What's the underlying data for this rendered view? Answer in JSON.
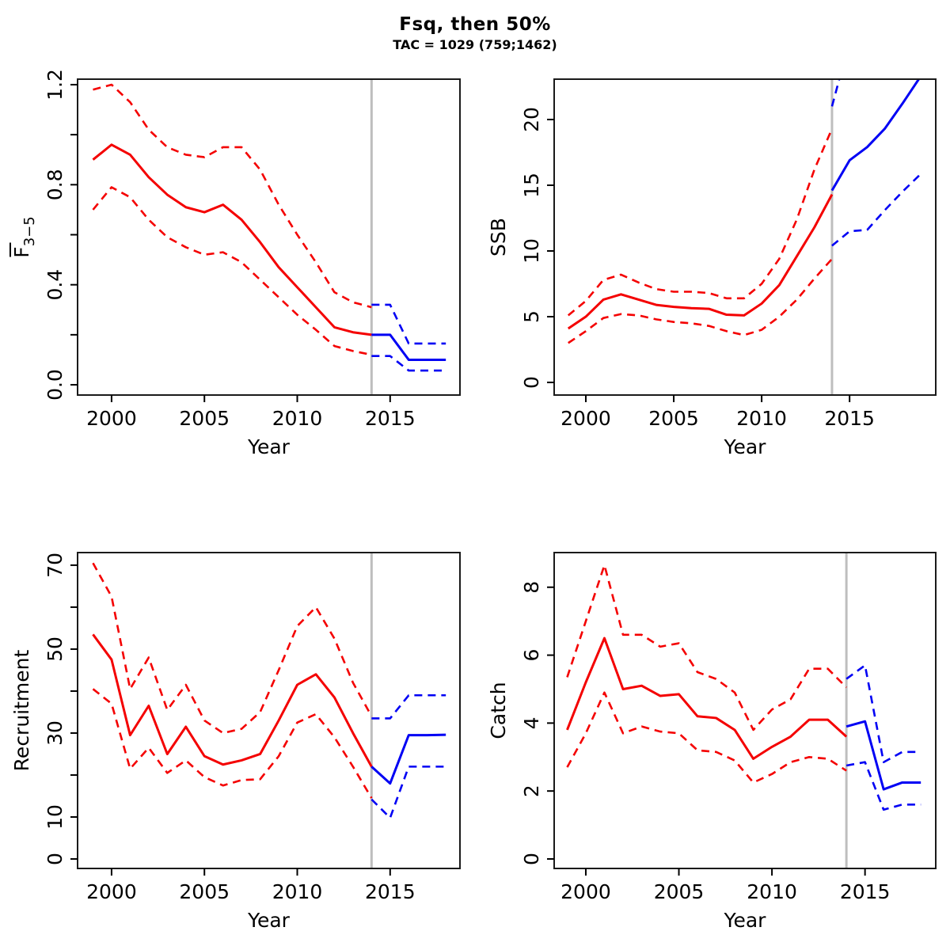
{
  "header": {
    "title": "Fsq, then 50%",
    "subtitle": "TAC = 1029 (759;1462)"
  },
  "colors": {
    "history": "#f40000",
    "projection": "#0000f4",
    "vline": "#bebebe",
    "axis": "#000000",
    "frame": "#1a1a1a"
  },
  "chart_data": [
    {
      "id": "fbar",
      "type": "line",
      "ylabel": {
        "text": "F",
        "sub": "3−5",
        "overbar": true
      },
      "xlabel": "Year",
      "xlim": [
        1998.17,
        2018.76
      ],
      "ylim": [
        -0.041,
        1.222
      ],
      "xticks": [
        2000,
        2005,
        2010,
        2015
      ],
      "xtick_labels": [
        "2000",
        "2005",
        "2010",
        "2015"
      ],
      "yticks": [
        0,
        0.2,
        0.4,
        0.6,
        0.8,
        1.0,
        1.2
      ],
      "ytick_labels": [
        "0.0",
        "",
        "0.4",
        "",
        "0.8",
        "",
        "1.2"
      ],
      "vline_x": 2014,
      "grid": false,
      "series": [
        {
          "name": "history-median",
          "segment": "history",
          "line": "solid",
          "x_start": 1999,
          "values": [
            0.9,
            0.96,
            0.92,
            0.83,
            0.76,
            0.71,
            0.69,
            0.72,
            0.66,
            0.57,
            0.47,
            0.39,
            0.31,
            0.23,
            0.21,
            0.2
          ]
        },
        {
          "name": "history-upper-ci",
          "segment": "history",
          "line": "dashed",
          "x_start": 1999,
          "values": [
            1.18,
            1.2,
            1.13,
            1.02,
            0.95,
            0.92,
            0.91,
            0.95,
            0.95,
            0.86,
            0.72,
            0.6,
            0.49,
            0.37,
            0.33,
            0.31
          ]
        },
        {
          "name": "history-lower-ci",
          "segment": "history",
          "line": "dashed",
          "x_start": 1999,
          "values": [
            0.7,
            0.79,
            0.75,
            0.66,
            0.59,
            0.55,
            0.52,
            0.53,
            0.49,
            0.42,
            0.35,
            0.28,
            0.22,
            0.155,
            0.135,
            0.12
          ]
        },
        {
          "name": "projection-median",
          "segment": "projection",
          "line": "solid",
          "x_start": 2014,
          "values": [
            0.2,
            0.2,
            0.1,
            0.1,
            0.1
          ]
        },
        {
          "name": "projection-upper-ci",
          "segment": "projection",
          "line": "dashed",
          "x_start": 2014,
          "values": [
            0.32,
            0.32,
            0.165,
            0.165,
            0.165
          ]
        },
        {
          "name": "projection-lower-ci",
          "segment": "projection",
          "line": "dashed",
          "x_start": 2014,
          "values": [
            0.115,
            0.115,
            0.057,
            0.057,
            0.057
          ]
        }
      ]
    },
    {
      "id": "ssb",
      "type": "line",
      "ylabel": "SSB",
      "xlabel": "Year",
      "xlim": [
        1998.2,
        2019.9
      ],
      "ylim": [
        -0.96,
        23.07
      ],
      "xticks": [
        2000,
        2005,
        2010,
        2015
      ],
      "xtick_labels": [
        "2000",
        "2005",
        "2010",
        "2015"
      ],
      "yticks": [
        0,
        5,
        10,
        15,
        20
      ],
      "ytick_labels": [
        "0",
        "5",
        "10",
        "15",
        "20"
      ],
      "vline_x": 2014,
      "grid": false,
      "series": [
        {
          "name": "history-median",
          "segment": "history",
          "line": "solid",
          "x_start": 1999,
          "values": [
            4.1,
            5.0,
            6.3,
            6.7,
            6.3,
            5.9,
            5.75,
            5.65,
            5.6,
            5.15,
            5.1,
            6.0,
            7.4,
            9.6,
            11.8,
            14.3
          ]
        },
        {
          "name": "history-upper-ci",
          "segment": "history",
          "line": "dashed",
          "x_start": 1999,
          "values": [
            5.1,
            6.2,
            7.8,
            8.2,
            7.6,
            7.1,
            6.9,
            6.9,
            6.8,
            6.4,
            6.4,
            7.5,
            9.4,
            12.4,
            16.2,
            19.3
          ]
        },
        {
          "name": "history-lower-ci",
          "segment": "history",
          "line": "dashed",
          "x_start": 1999,
          "values": [
            3.0,
            3.9,
            4.9,
            5.2,
            5.1,
            4.8,
            4.6,
            4.5,
            4.3,
            3.9,
            3.6,
            4.0,
            5.0,
            6.3,
            7.9,
            9.4
          ]
        },
        {
          "name": "projection-median",
          "segment": "projection",
          "line": "solid",
          "x_start": 2014,
          "values": [
            14.6,
            16.9,
            17.9,
            19.3,
            21.2,
            23.2
          ]
        },
        {
          "name": "projection-upper-ci",
          "segment": "projection",
          "line": "dashed",
          "x_start": 2014,
          "values": [
            21.0,
            26.0
          ]
        },
        {
          "name": "projection-lower-ci",
          "segment": "projection",
          "line": "dashed",
          "x_start": 2014,
          "values": [
            10.4,
            11.5,
            11.6,
            13.1,
            14.5,
            15.8
          ]
        }
      ]
    },
    {
      "id": "recruitment",
      "type": "line",
      "ylabel": "Recruitment",
      "xlabel": "Year",
      "xlim": [
        1998.17,
        2018.76
      ],
      "ylim": [
        -2.26,
        73.0
      ],
      "xticks": [
        2000,
        2005,
        2010,
        2015
      ],
      "xtick_labels": [
        "2000",
        "2005",
        "2010",
        "2015"
      ],
      "yticks": [
        0,
        10,
        20,
        30,
        40,
        50,
        60,
        70
      ],
      "ytick_labels": [
        "0",
        "10",
        "",
        "30",
        "",
        "50",
        "",
        "70"
      ],
      "vline_x": 2014,
      "grid": false,
      "series": [
        {
          "name": "history-median",
          "segment": "history",
          "line": "solid",
          "x_start": 1999,
          "values": [
            53.5,
            47.5,
            29.5,
            36.5,
            25,
            31.5,
            24.5,
            22.5,
            23.5,
            25,
            33,
            41.5,
            44,
            38.5,
            30,
            22
          ]
        },
        {
          "name": "history-upper-ci",
          "segment": "history",
          "line": "dashed",
          "x_start": 1999,
          "values": [
            70.5,
            62.5,
            40.5,
            48,
            35.5,
            41.5,
            33,
            30,
            31,
            35,
            45,
            55.5,
            60,
            52.5,
            42,
            34
          ]
        },
        {
          "name": "history-lower-ci",
          "segment": "history",
          "line": "dashed",
          "x_start": 1999,
          "values": [
            40.5,
            37,
            21.5,
            26.5,
            20.5,
            23.5,
            19.5,
            17.5,
            18.8,
            19,
            24.5,
            32.5,
            34.5,
            29,
            22,
            14.5
          ]
        },
        {
          "name": "projection-median",
          "segment": "projection",
          "line": "solid",
          "x_start": 2014,
          "values": [
            22,
            18,
            29.5,
            29.5,
            29.6
          ]
        },
        {
          "name": "projection-upper-ci",
          "segment": "projection",
          "line": "dashed",
          "x_start": 2014,
          "values": [
            33.5,
            33.5,
            39,
            39,
            39
          ]
        },
        {
          "name": "projection-lower-ci",
          "segment": "projection",
          "line": "dashed",
          "x_start": 2014,
          "values": [
            14.2,
            9.8,
            22,
            22,
            22
          ]
        }
      ]
    },
    {
      "id": "catch",
      "type": "line",
      "ylabel": "Catch",
      "xlabel": "Year",
      "xlim": [
        1998.3,
        2018.8
      ],
      "ylim": [
        -0.28,
        9.02
      ],
      "xticks": [
        2000,
        2005,
        2010,
        2015
      ],
      "xtick_labels": [
        "2000",
        "2005",
        "2010",
        "2015"
      ],
      "yticks": [
        0,
        2,
        4,
        6,
        8
      ],
      "ytick_labels": [
        "0",
        "2",
        "4",
        "6",
        "8"
      ],
      "vline_x": 2014,
      "grid": false,
      "series": [
        {
          "name": "history-median",
          "segment": "history",
          "line": "solid",
          "x_start": 1999,
          "values": [
            3.8,
            5.2,
            6.5,
            5.0,
            5.1,
            4.8,
            4.85,
            4.2,
            4.15,
            3.8,
            2.95,
            3.3,
            3.6,
            4.1,
            4.1,
            3.6
          ]
        },
        {
          "name": "history-upper-ci",
          "segment": "history",
          "line": "dashed",
          "x_start": 1999,
          "values": [
            5.35,
            7.0,
            8.65,
            6.6,
            6.6,
            6.25,
            6.35,
            5.5,
            5.3,
            4.9,
            3.8,
            4.4,
            4.7,
            5.6,
            5.6,
            5.05
          ]
        },
        {
          "name": "history-lower-ci",
          "segment": "history",
          "line": "dashed",
          "x_start": 1999,
          "values": [
            2.7,
            3.7,
            4.9,
            3.7,
            3.9,
            3.75,
            3.7,
            3.2,
            3.15,
            2.9,
            2.25,
            2.5,
            2.85,
            3.0,
            2.95,
            2.6
          ]
        },
        {
          "name": "projection-median",
          "segment": "projection",
          "line": "solid",
          "x_start": 2014,
          "values": [
            3.9,
            4.05,
            2.05,
            2.25,
            2.25
          ]
        },
        {
          "name": "projection-upper-ci",
          "segment": "projection",
          "line": "dashed",
          "x_start": 2014,
          "values": [
            5.3,
            5.7,
            2.85,
            3.15,
            3.15
          ]
        },
        {
          "name": "projection-lower-ci",
          "segment": "projection",
          "line": "dashed",
          "x_start": 2014,
          "values": [
            2.75,
            2.85,
            1.45,
            1.6,
            1.6
          ]
        }
      ]
    }
  ]
}
